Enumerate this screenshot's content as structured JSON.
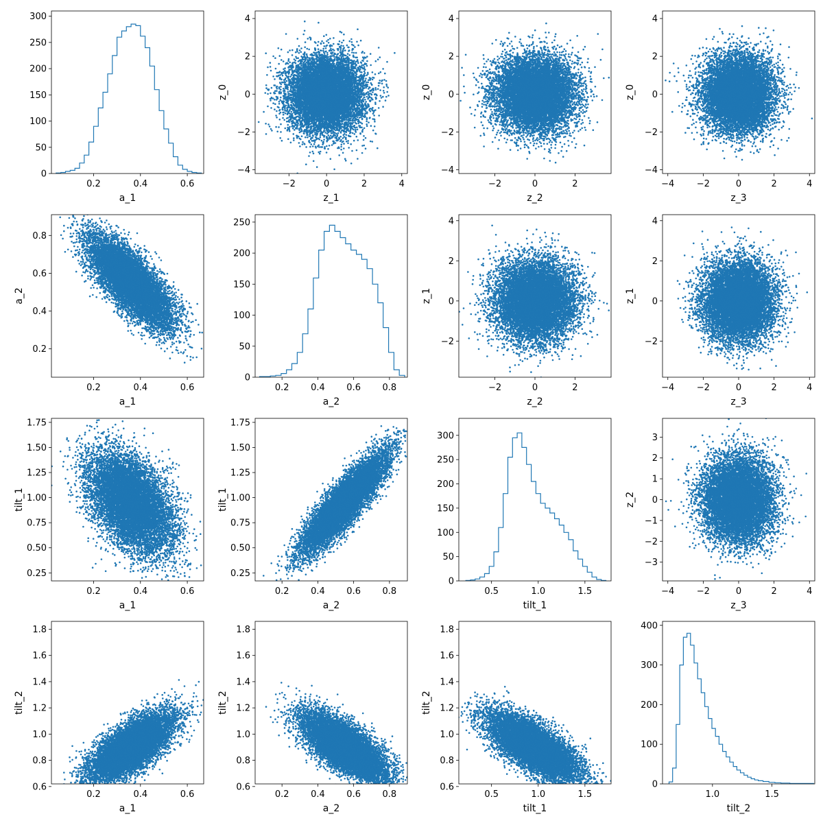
{
  "figure": {
    "layout": "4x4 corner plot",
    "series_color": "#1f77b4",
    "variables": [
      "a_1",
      "a_2",
      "tilt_1",
      "tilt_2",
      "z_0",
      "z_1",
      "z_2",
      "z_3"
    ]
  },
  "chart_data": [
    {
      "type": "histogram",
      "row": 0,
      "col": 0,
      "xlabel": "a_1",
      "ylabel": "",
      "xlim": [
        0.02,
        0.67
      ],
      "ylim": [
        0,
        310
      ],
      "xticks": [
        0.2,
        0.4,
        0.6
      ],
      "yticks": [
        0,
        50,
        100,
        150,
        200,
        250,
        300
      ],
      "bin_centers": [
        0.05,
        0.07,
        0.09,
        0.11,
        0.13,
        0.15,
        0.17,
        0.19,
        0.21,
        0.23,
        0.25,
        0.27,
        0.29,
        0.31,
        0.33,
        0.35,
        0.37,
        0.39,
        0.41,
        0.43,
        0.45,
        0.47,
        0.49,
        0.51,
        0.53,
        0.55,
        0.57,
        0.59,
        0.61,
        0.63,
        0.65
      ],
      "counts": [
        1,
        2,
        4,
        6,
        10,
        20,
        35,
        60,
        90,
        125,
        155,
        190,
        225,
        260,
        272,
        280,
        285,
        282,
        262,
        240,
        205,
        160,
        120,
        85,
        58,
        32,
        16,
        8,
        4,
        2,
        1
      ]
    },
    {
      "type": "scatter",
      "row": 0,
      "col": 1,
      "xlabel": "z_1",
      "ylabel": "z_0",
      "xlim": [
        -3.8,
        4.3
      ],
      "ylim": [
        -4.2,
        4.4
      ],
      "xticks": [
        -2,
        0,
        2,
        4
      ],
      "yticks": [
        -4,
        -2,
        0,
        2,
        4
      ],
      "distribution": {
        "kind": "gaussian",
        "mean": [
          0,
          0
        ],
        "std": [
          1,
          1
        ],
        "corr": 0,
        "n_points": 10000
      }
    },
    {
      "type": "scatter",
      "row": 0,
      "col": 2,
      "xlabel": "z_2",
      "ylabel": "z_0",
      "xlim": [
        -3.8,
        3.8
      ],
      "ylim": [
        -4.2,
        4.4
      ],
      "xticks": [
        -2,
        0,
        2
      ],
      "yticks": [
        -4,
        -2,
        0,
        2,
        4
      ],
      "distribution": {
        "kind": "gaussian",
        "mean": [
          0,
          0
        ],
        "std": [
          1,
          1
        ],
        "corr": 0,
        "n_points": 10000
      }
    },
    {
      "type": "scatter",
      "row": 0,
      "col": 3,
      "xlabel": "z_3",
      "ylabel": "z_0",
      "xlim": [
        -4.3,
        4.3
      ],
      "ylim": [
        -4.2,
        4.4
      ],
      "xticks": [
        -4,
        -2,
        0,
        2,
        4
      ],
      "yticks": [
        -4,
        -2,
        0,
        2,
        4
      ],
      "distribution": {
        "kind": "gaussian",
        "mean": [
          0,
          0
        ],
        "std": [
          1,
          1
        ],
        "corr": 0,
        "n_points": 10000
      }
    },
    {
      "type": "scatter",
      "row": 1,
      "col": 0,
      "xlabel": "a_1",
      "ylabel": "a_2",
      "xlim": [
        0.02,
        0.67
      ],
      "ylim": [
        0.05,
        0.91
      ],
      "xticks": [
        0.2,
        0.4,
        0.6
      ],
      "yticks": [
        0.2,
        0.4,
        0.6,
        0.8
      ],
      "distribution": {
        "kind": "gaussian",
        "mean": [
          0.36,
          0.55
        ],
        "std": [
          0.09,
          0.12
        ],
        "corr": -0.75,
        "n_points": 10000
      }
    },
    {
      "type": "histogram",
      "row": 1,
      "col": 1,
      "xlabel": "a_2",
      "ylabel": "",
      "xlim": [
        0.05,
        0.9
      ],
      "ylim": [
        0,
        262
      ],
      "xticks": [
        0.2,
        0.4,
        0.6,
        0.8
      ],
      "yticks": [
        0,
        50,
        100,
        150,
        200,
        250
      ],
      "bin_centers": [
        0.09,
        0.12,
        0.15,
        0.18,
        0.21,
        0.24,
        0.27,
        0.3,
        0.33,
        0.36,
        0.39,
        0.42,
        0.45,
        0.48,
        0.51,
        0.54,
        0.57,
        0.6,
        0.63,
        0.66,
        0.69,
        0.72,
        0.75,
        0.78,
        0.81,
        0.84,
        0.87
      ],
      "counts": [
        1,
        1,
        2,
        3,
        6,
        12,
        22,
        40,
        70,
        110,
        160,
        205,
        235,
        245,
        235,
        225,
        215,
        205,
        198,
        190,
        175,
        150,
        120,
        80,
        40,
        12,
        3
      ]
    },
    {
      "type": "scatter",
      "row": 1,
      "col": 2,
      "xlabel": "z_2",
      "ylabel": "z_1",
      "xlim": [
        -3.8,
        3.8
      ],
      "ylim": [
        -3.8,
        4.3
      ],
      "xticks": [
        -2,
        0,
        2
      ],
      "yticks": [
        -2,
        0,
        2,
        4
      ],
      "distribution": {
        "kind": "gaussian",
        "mean": [
          0,
          0
        ],
        "std": [
          1,
          1
        ],
        "corr": 0,
        "n_points": 10000
      }
    },
    {
      "type": "scatter",
      "row": 1,
      "col": 3,
      "xlabel": "z_3",
      "ylabel": "z_1",
      "xlim": [
        -4.3,
        4.3
      ],
      "ylim": [
        -3.8,
        4.3
      ],
      "xticks": [
        -4,
        -2,
        0,
        2,
        4
      ],
      "yticks": [
        -2,
        0,
        2,
        4
      ],
      "distribution": {
        "kind": "gaussian",
        "mean": [
          0,
          0
        ],
        "std": [
          1,
          1
        ],
        "corr": 0,
        "n_points": 10000
      }
    },
    {
      "type": "scatter",
      "row": 2,
      "col": 0,
      "xlabel": "a_1",
      "ylabel": "tilt_1",
      "xlim": [
        0.02,
        0.67
      ],
      "ylim": [
        0.17,
        1.79
      ],
      "xticks": [
        0.2,
        0.4,
        0.6
      ],
      "yticks": [
        0.25,
        0.5,
        0.75,
        1.0,
        1.25,
        1.5,
        1.75
      ],
      "distribution": {
        "kind": "gaussian",
        "mean": [
          0.36,
          0.95
        ],
        "std": [
          0.09,
          0.25
        ],
        "corr": -0.45,
        "n_points": 10000
      }
    },
    {
      "type": "scatter",
      "row": 2,
      "col": 1,
      "xlabel": "a_2",
      "ylabel": "tilt_1",
      "xlim": [
        0.05,
        0.9
      ],
      "ylim": [
        0.17,
        1.79
      ],
      "xticks": [
        0.2,
        0.4,
        0.6,
        0.8
      ],
      "yticks": [
        0.25,
        0.5,
        0.75,
        1.0,
        1.25,
        1.5,
        1.75
      ],
      "distribution": {
        "kind": "gaussian",
        "mean": [
          0.55,
          0.95
        ],
        "std": [
          0.12,
          0.25
        ],
        "corr": 0.88,
        "n_points": 10000
      }
    },
    {
      "type": "histogram",
      "row": 2,
      "col": 2,
      "xlabel": "tilt_1",
      "ylabel": "",
      "xlim": [
        0.15,
        1.78
      ],
      "ylim": [
        0,
        335
      ],
      "xticks": [
        0.5,
        1.0,
        1.5
      ],
      "yticks": [
        0,
        50,
        100,
        150,
        200,
        250,
        300
      ],
      "bin_centers": [
        0.25,
        0.3,
        0.35,
        0.4,
        0.45,
        0.5,
        0.55,
        0.6,
        0.65,
        0.7,
        0.75,
        0.8,
        0.85,
        0.9,
        0.95,
        1.0,
        1.05,
        1.1,
        1.15,
        1.2,
        1.25,
        1.3,
        1.35,
        1.4,
        1.45,
        1.5,
        1.55,
        1.6,
        1.65,
        1.7
      ],
      "counts": [
        1,
        2,
        4,
        8,
        15,
        30,
        60,
        110,
        180,
        255,
        295,
        305,
        275,
        240,
        205,
        180,
        160,
        150,
        140,
        128,
        115,
        100,
        85,
        62,
        45,
        30,
        18,
        8,
        3,
        1
      ]
    },
    {
      "type": "scatter",
      "row": 2,
      "col": 3,
      "xlabel": "z_3",
      "ylabel": "z_2",
      "xlim": [
        -4.3,
        4.3
      ],
      "ylim": [
        -3.9,
        3.9
      ],
      "xticks": [
        -4,
        -2,
        0,
        2,
        4
      ],
      "yticks": [
        -3,
        -2,
        -1,
        0,
        1,
        2,
        3
      ],
      "distribution": {
        "kind": "gaussian",
        "mean": [
          0,
          0
        ],
        "std": [
          1,
          1
        ],
        "corr": 0,
        "n_points": 10000
      }
    },
    {
      "type": "scatter",
      "row": 3,
      "col": 0,
      "xlabel": "a_1",
      "ylabel": "tilt_2",
      "xlim": [
        0.02,
        0.67
      ],
      "ylim": [
        0.62,
        1.86
      ],
      "xticks": [
        0.2,
        0.4,
        0.6
      ],
      "yticks": [
        0.6,
        0.8,
        1.0,
        1.2,
        1.4,
        1.6,
        1.8
      ],
      "distribution": {
        "kind": "gaussian",
        "mean": [
          0.36,
          0.9
        ],
        "std": [
          0.09,
          0.13
        ],
        "corr": 0.7,
        "n_points": 10000
      }
    },
    {
      "type": "scatter",
      "row": 3,
      "col": 1,
      "xlabel": "a_2",
      "ylabel": "tilt_2",
      "xlim": [
        0.05,
        0.9
      ],
      "ylim": [
        0.62,
        1.86
      ],
      "xticks": [
        0.2,
        0.4,
        0.6,
        0.8
      ],
      "yticks": [
        0.6,
        0.8,
        1.0,
        1.2,
        1.4,
        1.6,
        1.8
      ],
      "distribution": {
        "kind": "gaussian",
        "mean": [
          0.55,
          0.9
        ],
        "std": [
          0.12,
          0.13
        ],
        "corr": -0.7,
        "n_points": 10000
      }
    },
    {
      "type": "scatter",
      "row": 3,
      "col": 2,
      "xlabel": "tilt_1",
      "ylabel": "tilt_2",
      "xlim": [
        0.15,
        1.78
      ],
      "ylim": [
        0.62,
        1.86
      ],
      "xticks": [
        0.5,
        1.0,
        1.5
      ],
      "yticks": [
        0.6,
        0.8,
        1.0,
        1.2,
        1.4,
        1.6,
        1.8
      ],
      "distribution": {
        "kind": "gaussian",
        "mean": [
          0.95,
          0.9
        ],
        "std": [
          0.25,
          0.13
        ],
        "corr": -0.72,
        "n_points": 10000
      }
    },
    {
      "type": "histogram",
      "row": 3,
      "col": 3,
      "xlabel": "tilt_2",
      "ylabel": "",
      "xlim": [
        0.58,
        1.86
      ],
      "ylim": [
        0,
        410
      ],
      "xticks": [
        1.0,
        1.5
      ],
      "yticks": [
        0,
        100,
        200,
        300,
        400
      ],
      "bin_centers": [
        0.65,
        0.68,
        0.71,
        0.74,
        0.77,
        0.8,
        0.83,
        0.86,
        0.89,
        0.92,
        0.95,
        0.98,
        1.01,
        1.04,
        1.07,
        1.1,
        1.13,
        1.16,
        1.19,
        1.22,
        1.25,
        1.28,
        1.31,
        1.34,
        1.37,
        1.4,
        1.45,
        1.5,
        1.55,
        1.6,
        1.7,
        1.8
      ],
      "counts": [
        5,
        40,
        150,
        300,
        370,
        380,
        350,
        305,
        265,
        230,
        195,
        165,
        140,
        120,
        100,
        82,
        68,
        55,
        44,
        35,
        28,
        22,
        17,
        13,
        10,
        8,
        6,
        4,
        3,
        2,
        1,
        1
      ]
    }
  ]
}
